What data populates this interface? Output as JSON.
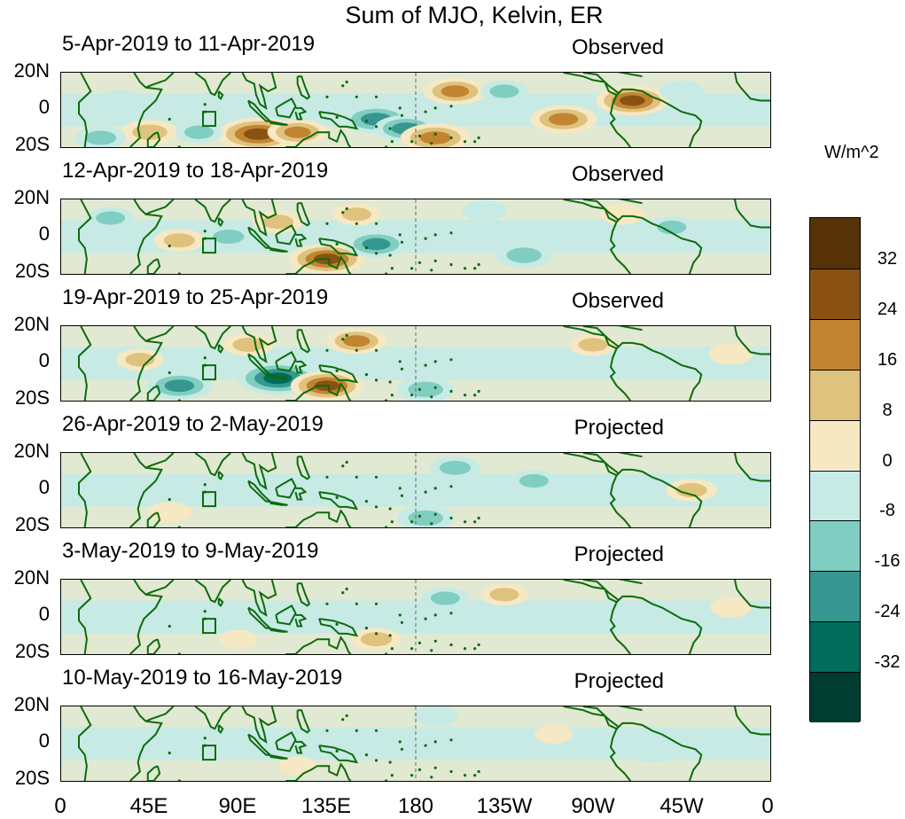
{
  "title": "Sum of MJO, Kelvin, ER",
  "units": "W/m^2",
  "panels": [
    {
      "date": "5-Apr-2019 to 11-Apr-2019",
      "status": "Observed"
    },
    {
      "date": "12-Apr-2019 to 18-Apr-2019",
      "status": "Observed"
    },
    {
      "date": "19-Apr-2019 to 25-Apr-2019",
      "status": "Observed"
    },
    {
      "date": "26-Apr-2019 to 2-May-2019",
      "status": "Projected"
    },
    {
      "date": "3-May-2019 to 9-May-2019",
      "status": "Projected"
    },
    {
      "date": "10-May-2019 to 16-May-2019",
      "status": "Projected"
    }
  ],
  "lat_labels": [
    "20N",
    "0",
    "20S"
  ],
  "lon_labels": [
    "0",
    "45E",
    "90E",
    "135E",
    "180",
    "135W",
    "90W",
    "45W",
    "0"
  ],
  "colorbar": {
    "labels": [
      "32",
      "24",
      "16",
      "8",
      "0",
      "-8",
      "-16",
      "-24",
      "-32"
    ],
    "colors": [
      "#563208",
      "#8a5212",
      "#c18431",
      "#dfc27e",
      "#f6e8c3",
      "#c7eae5",
      "#80cdc1",
      "#35978f",
      "#016c59",
      "#003c30"
    ]
  },
  "chart_data": {
    "type": "heatmap",
    "title": "Sum of MJO, Kelvin, ER",
    "units": "W/m^2",
    "x_range_deg_east": [
      0,
      360
    ],
    "y_range_lat": [
      -20,
      20
    ],
    "contour_levels": [
      -32,
      -24,
      -16,
      -8,
      0,
      8,
      16,
      24,
      32
    ],
    "panels": [
      {
        "period": "5-Apr-2019 to 11-Apr-2019",
        "type": "Observed",
        "features": [
          {
            "lon": 100,
            "lat": -13,
            "value": 34
          },
          {
            "lon": 120,
            "lat": -12,
            "value": 20
          },
          {
            "lon": 45,
            "lat": -12,
            "value": 18
          },
          {
            "lon": 20,
            "lat": -15,
            "value": -14
          },
          {
            "lon": 160,
            "lat": -5,
            "value": -26
          },
          {
            "lon": 175,
            "lat": -10,
            "value": -22
          },
          {
            "lon": 190,
            "lat": -15,
            "value": 26
          },
          {
            "lon": 200,
            "lat": 10,
            "value": 22
          },
          {
            "lon": 225,
            "lat": 10,
            "value": -12
          },
          {
            "lon": 255,
            "lat": -5,
            "value": 24
          },
          {
            "lon": 290,
            "lat": 5,
            "value": 28
          },
          {
            "lon": 315,
            "lat": 10,
            "value": -10
          },
          {
            "lon": 70,
            "lat": -12,
            "value": -12
          },
          {
            "lon": 30,
            "lat": 5,
            "value": -10
          }
        ]
      },
      {
        "period": "12-Apr-2019 to 18-Apr-2019",
        "type": "Observed",
        "features": [
          {
            "lon": 135,
            "lat": -12,
            "value": 30
          },
          {
            "lon": 85,
            "lat": 0,
            "value": -14
          },
          {
            "lon": 160,
            "lat": -4,
            "value": -22
          },
          {
            "lon": 60,
            "lat": -2,
            "value": 14
          },
          {
            "lon": 110,
            "lat": 8,
            "value": 14
          },
          {
            "lon": 150,
            "lat": 12,
            "value": 12
          },
          {
            "lon": 215,
            "lat": 14,
            "value": -10
          },
          {
            "lon": 235,
            "lat": -10,
            "value": -18
          },
          {
            "lon": 285,
            "lat": 12,
            "value": 10
          },
          {
            "lon": 310,
            "lat": 5,
            "value": -12
          },
          {
            "lon": 25,
            "lat": 10,
            "value": -12
          }
        ]
      },
      {
        "period": "19-Apr-2019 to 25-Apr-2019",
        "type": "Observed",
        "features": [
          {
            "lon": 110,
            "lat": -8,
            "value": -34
          },
          {
            "lon": 135,
            "lat": -12,
            "value": 28
          },
          {
            "lon": 60,
            "lat": -12,
            "value": -24
          },
          {
            "lon": 150,
            "lat": 12,
            "value": 20
          },
          {
            "lon": 95,
            "lat": 10,
            "value": 14
          },
          {
            "lon": 185,
            "lat": -14,
            "value": -18
          },
          {
            "lon": 340,
            "lat": 5,
            "value": 10
          },
          {
            "lon": 270,
            "lat": 10,
            "value": 12
          },
          {
            "lon": 40,
            "lat": 2,
            "value": 12
          }
        ]
      },
      {
        "period": "26-Apr-2019 to 2-May-2019",
        "type": "Projected",
        "features": [
          {
            "lon": 185,
            "lat": -15,
            "value": -18
          },
          {
            "lon": 200,
            "lat": 12,
            "value": -14
          },
          {
            "lon": 240,
            "lat": 5,
            "value": -12
          },
          {
            "lon": 320,
            "lat": 0,
            "value": 14
          },
          {
            "lon": 55,
            "lat": -12,
            "value": 10
          },
          {
            "lon": 90,
            "lat": 0,
            "value": -8
          },
          {
            "lon": 25,
            "lat": 0,
            "value": -10
          }
        ]
      },
      {
        "period": "3-May-2019 to 9-May-2019",
        "type": "Projected",
        "features": [
          {
            "lon": 160,
            "lat": -12,
            "value": 14
          },
          {
            "lon": 225,
            "lat": 12,
            "value": 12
          },
          {
            "lon": 195,
            "lat": 10,
            "value": -12
          },
          {
            "lon": 90,
            "lat": -12,
            "value": 6
          },
          {
            "lon": 340,
            "lat": 5,
            "value": 8
          }
        ]
      },
      {
        "period": "10-May-2019 to 16-May-2019",
        "type": "Projected",
        "features": [
          {
            "lon": 250,
            "lat": 5,
            "value": 6
          },
          {
            "lon": 190,
            "lat": 15,
            "value": -10
          },
          {
            "lon": 120,
            "lat": -12,
            "value": 6
          },
          {
            "lon": 300,
            "lat": -5,
            "value": -8
          }
        ]
      }
    ]
  }
}
